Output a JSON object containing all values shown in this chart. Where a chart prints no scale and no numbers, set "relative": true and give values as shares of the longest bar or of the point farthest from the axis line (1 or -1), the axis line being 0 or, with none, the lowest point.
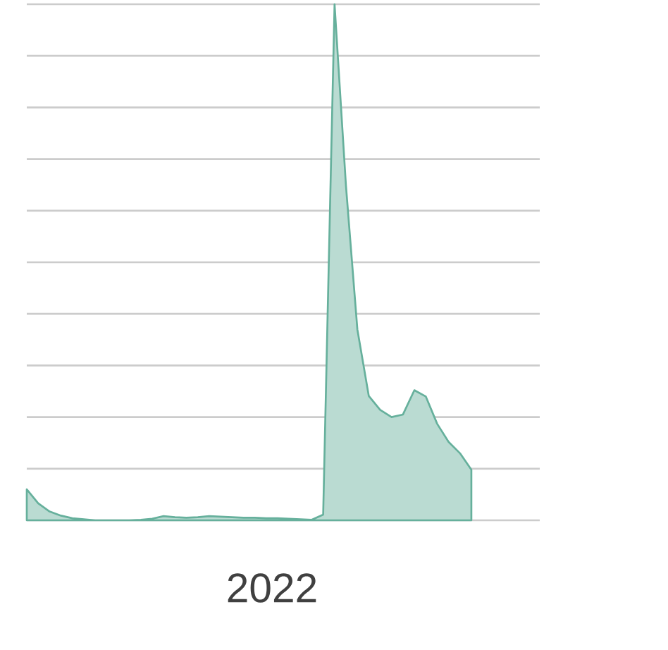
{
  "chart_data": {
    "type": "area",
    "relative": true,
    "grid": "y",
    "annotations": [
      "2022"
    ],
    "categories": [
      null,
      null,
      null,
      null,
      null,
      null,
      null,
      null,
      null,
      null,
      null,
      null,
      null,
      null,
      null,
      null,
      null,
      null,
      null,
      null,
      null,
      null,
      null,
      null,
      null,
      null,
      null,
      null,
      null,
      null,
      null,
      null,
      null,
      null,
      null,
      null,
      null,
      null,
      null,
      null,
      null,
      null,
      null,
      null,
      null,
      null
    ],
    "series": [
      {
        "color": "#66b09c",
        "values": [
          0.06,
          0.033,
          0.017,
          0.009,
          0.004,
          0.002,
          0.0,
          0.0,
          0.0,
          0.0,
          0.001,
          0.003,
          0.008,
          0.006,
          0.005,
          0.006,
          0.008,
          0.007,
          0.006,
          0.005,
          0.005,
          0.004,
          0.004,
          0.003,
          0.002,
          0.001,
          0.011,
          1,
          0.648,
          0.37,
          0.241,
          0.214,
          0.2,
          0.205,
          0.252,
          0.24,
          0.187,
          0.152,
          0.13,
          0.098,
          null,
          null,
          null,
          null,
          null,
          null
        ]
      }
    ]
  }
}
